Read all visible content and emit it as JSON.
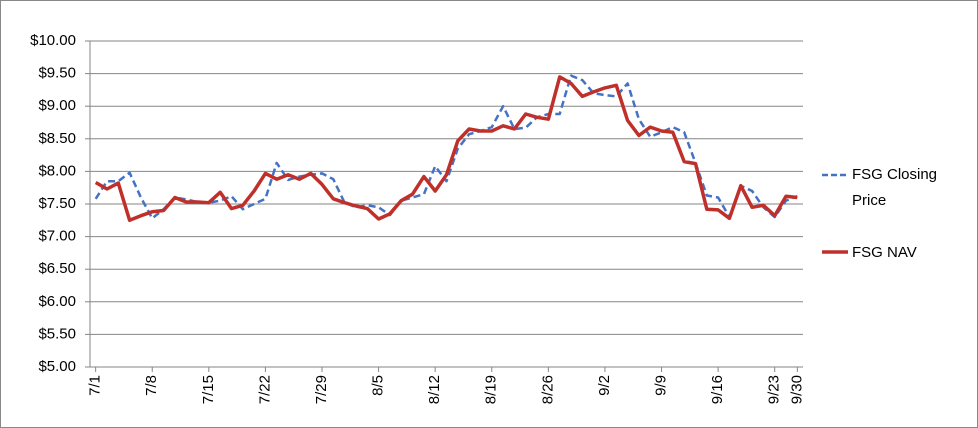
{
  "chart_data": {
    "type": "line",
    "categories": [
      "7/1",
      null,
      null,
      null,
      null,
      "7/8",
      null,
      null,
      null,
      null,
      "7/15",
      null,
      null,
      null,
      null,
      "7/22",
      null,
      null,
      null,
      null,
      "7/29",
      null,
      null,
      null,
      null,
      "8/5",
      null,
      null,
      null,
      null,
      "8/12",
      null,
      null,
      null,
      null,
      "8/19",
      null,
      null,
      null,
      null,
      "8/26",
      null,
      null,
      null,
      null,
      "9/2",
      null,
      null,
      null,
      null,
      "9/9",
      null,
      null,
      null,
      null,
      "9/16",
      null,
      null,
      null,
      null,
      "9/23",
      null,
      "9/30"
    ],
    "series": [
      {
        "name": "FSG Closing Price",
        "color": "#4472c4",
        "dash": true,
        "values": [
          7.58,
          7.85,
          7.85,
          7.98,
          7.6,
          7.28,
          7.42,
          7.6,
          7.57,
          7.53,
          7.52,
          7.55,
          7.62,
          7.42,
          7.5,
          7.58,
          8.13,
          7.87,
          7.92,
          7.95,
          7.97,
          7.88,
          7.52,
          7.45,
          7.48,
          7.45,
          7.33,
          7.55,
          7.6,
          7.65,
          8.08,
          7.85,
          8.35,
          8.57,
          8.62,
          8.68,
          9.0,
          8.65,
          8.67,
          8.83,
          8.88,
          8.88,
          9.47,
          9.4,
          9.2,
          9.17,
          9.15,
          9.35,
          8.8,
          8.53,
          8.6,
          8.68,
          8.6,
          8.13,
          7.63,
          7.6,
          7.3,
          7.78,
          7.7,
          7.45,
          7.3,
          7.55,
          7.62
        ]
      },
      {
        "name": "FSG NAV",
        "color": "#c0302b",
        "dash": false,
        "values": [
          7.83,
          7.73,
          7.82,
          7.25,
          7.32,
          7.38,
          7.4,
          7.6,
          7.53,
          7.53,
          7.52,
          7.68,
          7.43,
          7.48,
          7.7,
          7.97,
          7.88,
          7.95,
          7.88,
          7.97,
          7.8,
          7.58,
          7.52,
          7.47,
          7.43,
          7.27,
          7.35,
          7.55,
          7.65,
          7.92,
          7.7,
          7.95,
          8.47,
          8.65,
          8.62,
          8.62,
          8.7,
          8.65,
          8.88,
          8.83,
          8.8,
          9.45,
          9.35,
          9.15,
          9.22,
          9.28,
          9.32,
          8.78,
          8.55,
          8.68,
          8.62,
          8.6,
          8.15,
          8.12,
          7.42,
          7.41,
          7.28,
          7.78,
          7.45,
          7.48,
          7.32,
          7.62,
          7.6
        ]
      }
    ],
    "ylim": [
      5,
      10
    ],
    "yticks": [
      {
        "value": 5,
        "label": "$5.00"
      },
      {
        "value": 5.5,
        "label": "$5.50"
      },
      {
        "value": 6,
        "label": "$6.00"
      },
      {
        "value": 6.5,
        "label": "$6.50"
      },
      {
        "value": 7,
        "label": "$7.00"
      },
      {
        "value": 7.5,
        "label": "$7.50"
      },
      {
        "value": 8,
        "label": "$8.00"
      },
      {
        "value": 8.5,
        "label": "$8.50"
      },
      {
        "value": 9,
        "label": "$9.00"
      },
      {
        "value": 9.5,
        "label": "$9.50"
      },
      {
        "value": 10,
        "label": "$10.00"
      }
    ],
    "grid": true,
    "legend": "right"
  }
}
